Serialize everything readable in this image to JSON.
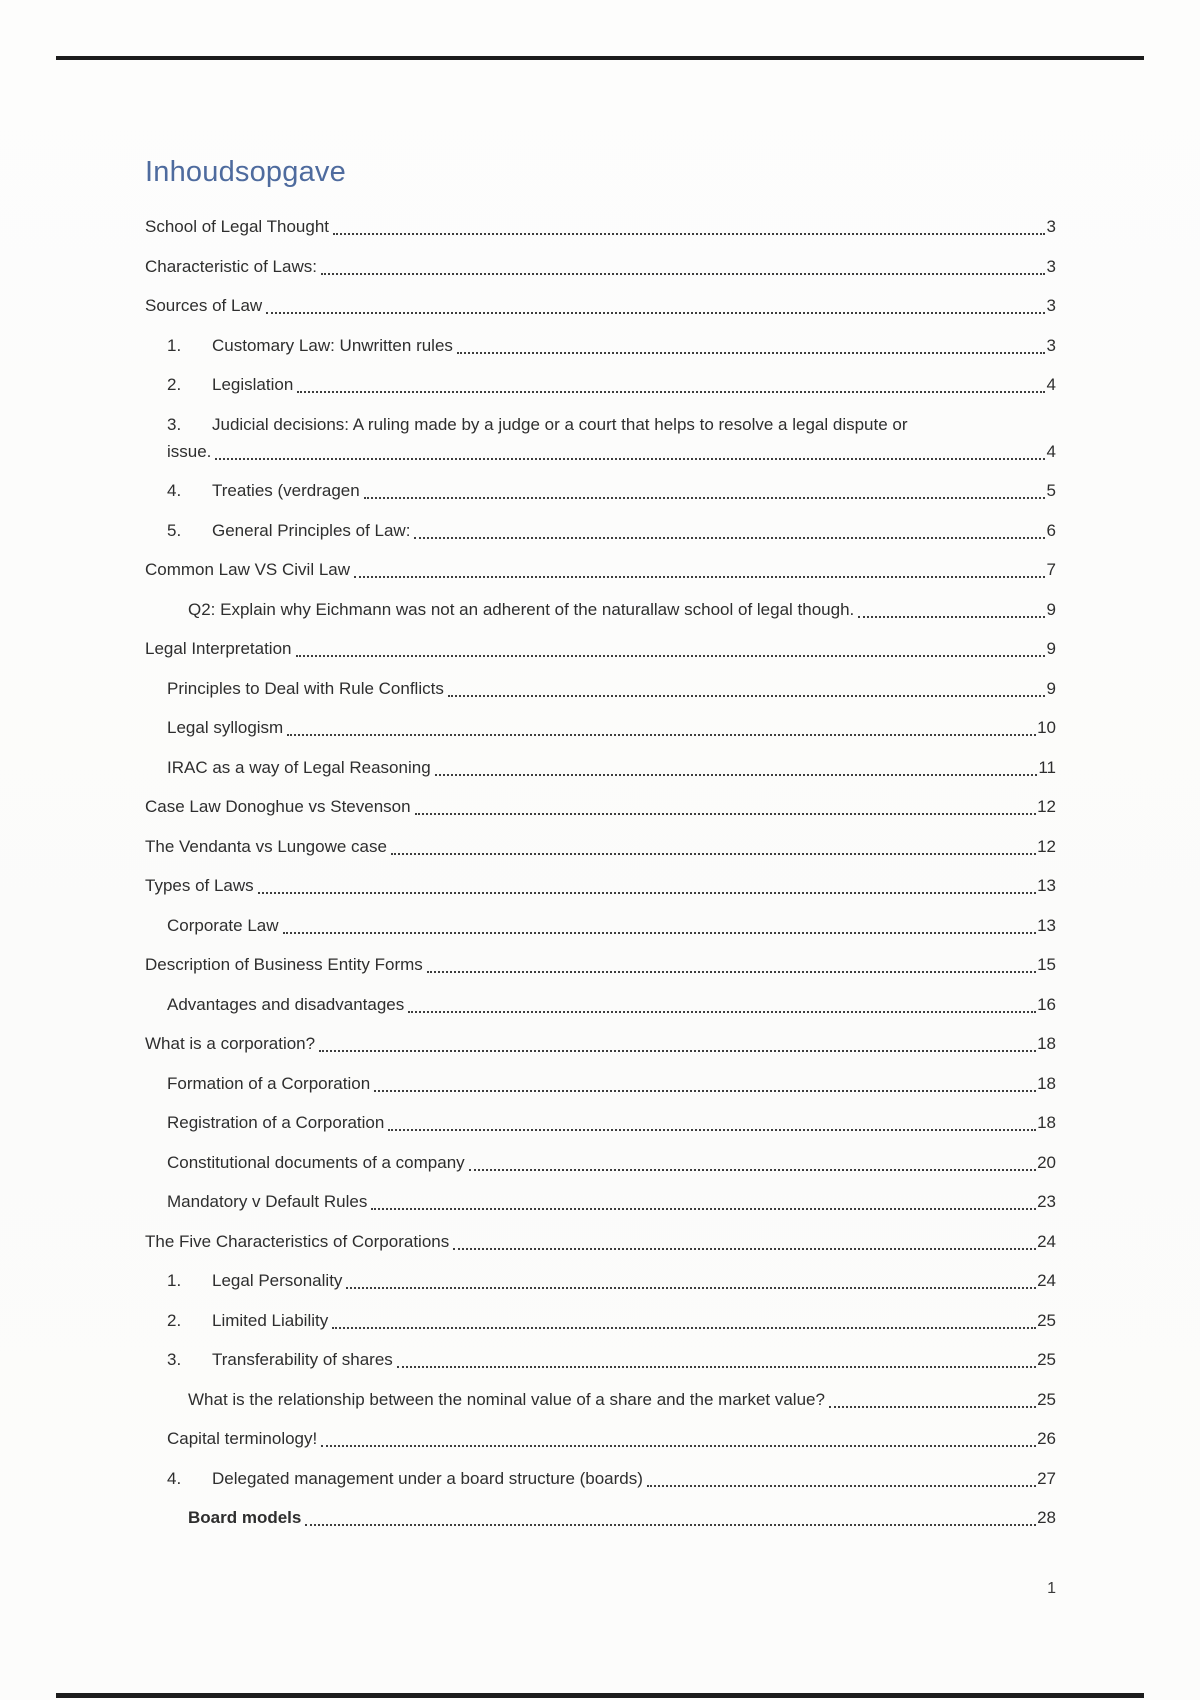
{
  "page": {
    "title": "Inhoudsopgave",
    "footer_page_number": "1"
  },
  "colors": {
    "title_accent": "#4e6b9e",
    "body_text": "#2e2e2e",
    "dot_leader": "#3d3d3d",
    "border_rule": "#1c1c1c"
  },
  "toc": {
    "entries": [
      {
        "level": "h1",
        "label": "School of Legal Thought",
        "page": "3"
      },
      {
        "level": "h1",
        "label": "Characteristic of Laws:",
        "page": "3"
      },
      {
        "level": "h1",
        "label": "Sources of Law",
        "page": "3"
      },
      {
        "level": "num",
        "num": "1.",
        "label": "Customary Law: Unwritten rules",
        "page": "3"
      },
      {
        "level": "num",
        "num": "2.",
        "label": "Legislation",
        "page": "4"
      },
      {
        "level": "num",
        "num": "3.",
        "label": "Judicial decisions: A ruling made by a judge or a court that helps to resolve a legal dispute or",
        "cont": "issue.",
        "page": "4"
      },
      {
        "level": "num",
        "num": "4.",
        "label": "Treaties (verdragen",
        "page": "5"
      },
      {
        "level": "num",
        "num": "5.",
        "label": "General Principles of Law:",
        "page": "6"
      },
      {
        "level": "h1",
        "label": "Common Law VS Civil Law",
        "page": "7"
      },
      {
        "level": "h3",
        "label": "Q2: Explain why Eichmann was not an adherent of the naturallaw school of legal though.",
        "page": "9"
      },
      {
        "level": "h1",
        "label": "Legal Interpretation",
        "page": "9"
      },
      {
        "level": "h2",
        "label": "Principles to Deal with Rule Conflicts",
        "page": "9"
      },
      {
        "level": "h2",
        "label": "Legal syllogism",
        "page": "10"
      },
      {
        "level": "h2",
        "label": "IRAC as a way of Legal Reasoning",
        "page": "11"
      },
      {
        "level": "h1",
        "label": "Case Law Donoghue vs Stevenson",
        "page": "12"
      },
      {
        "level": "h1",
        "label": "The Vendanta vs Lungowe case",
        "page": "12"
      },
      {
        "level": "h1",
        "label": "Types of Laws",
        "page": "13"
      },
      {
        "level": "h2",
        "label": "Corporate Law",
        "page": "13"
      },
      {
        "level": "h1",
        "label": "Description of Business Entity Forms",
        "page": "15"
      },
      {
        "level": "h2",
        "label": "Advantages and disadvantages",
        "page": "16"
      },
      {
        "level": "h1",
        "label": "What is a corporation?",
        "page": "18"
      },
      {
        "level": "h2",
        "label": "Formation of a Corporation",
        "page": "18"
      },
      {
        "level": "h2",
        "label": "Registration of a Corporation",
        "page": "18"
      },
      {
        "level": "h2",
        "label": "Constitutional documents of a company",
        "page": "20"
      },
      {
        "level": "h2",
        "label": "Mandatory v Default Rules",
        "page": "23"
      },
      {
        "level": "h1",
        "label": "The Five Characteristics of Corporations",
        "page": "24"
      },
      {
        "level": "num",
        "num": "1.",
        "label": "Legal Personality",
        "page": "24"
      },
      {
        "level": "num",
        "num": "2.",
        "label": "Limited Liability",
        "page": "25"
      },
      {
        "level": "num",
        "num": "3.",
        "label": "Transferability of shares",
        "page": "25"
      },
      {
        "level": "h3",
        "label": "What is the relationship between the nominal value of a share and the market value?",
        "page": "25"
      },
      {
        "level": "h2",
        "label": "Capital terminology!",
        "page": "26"
      },
      {
        "level": "num",
        "num": "4.",
        "label": "Delegated management under a board structure (boards)",
        "page": "27"
      },
      {
        "level": "h3",
        "label": "Board models",
        "page": "28",
        "bold": true
      }
    ]
  }
}
